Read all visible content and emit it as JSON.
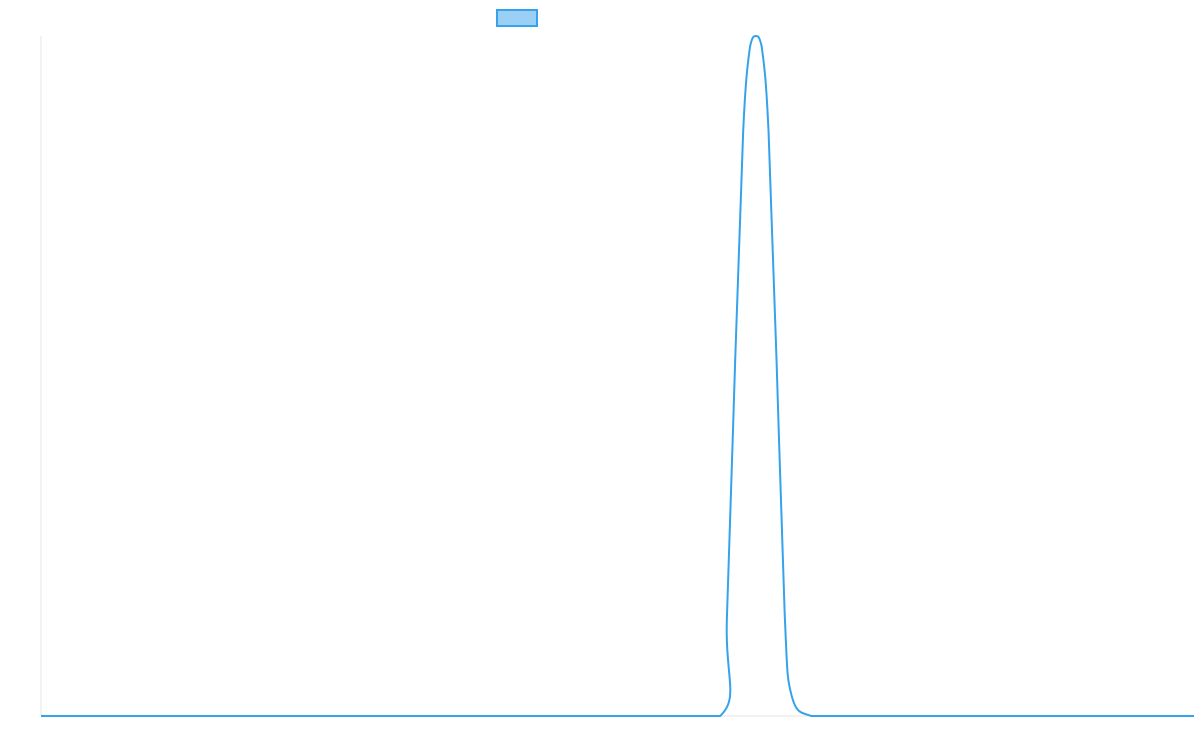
{
  "chart_data": {
    "type": "line",
    "title": "",
    "xlabel": "",
    "ylabel": "",
    "grid": false,
    "legend_position": "top",
    "x": [
      0,
      10,
      20,
      30,
      40,
      50,
      58.9,
      59.5,
      60.2,
      60.9,
      61.5,
      62,
      62.5,
      63.1,
      63.8,
      64.5,
      65.1,
      66.8,
      70,
      80,
      90,
      100
    ],
    "xlim": [
      0,
      100
    ],
    "ylim": [
      0,
      1
    ],
    "series": [
      {
        "name": "",
        "color": "#36a2eb",
        "fill": "#9ad0f5",
        "values": [
          0,
          0,
          0,
          0,
          0,
          0,
          0,
          0.15,
          0.52,
          0.86,
          0.985,
          1.0,
          0.985,
          0.86,
          0.52,
          0.15,
          0.03,
          0,
          0,
          0,
          0,
          0
        ]
      }
    ]
  }
}
